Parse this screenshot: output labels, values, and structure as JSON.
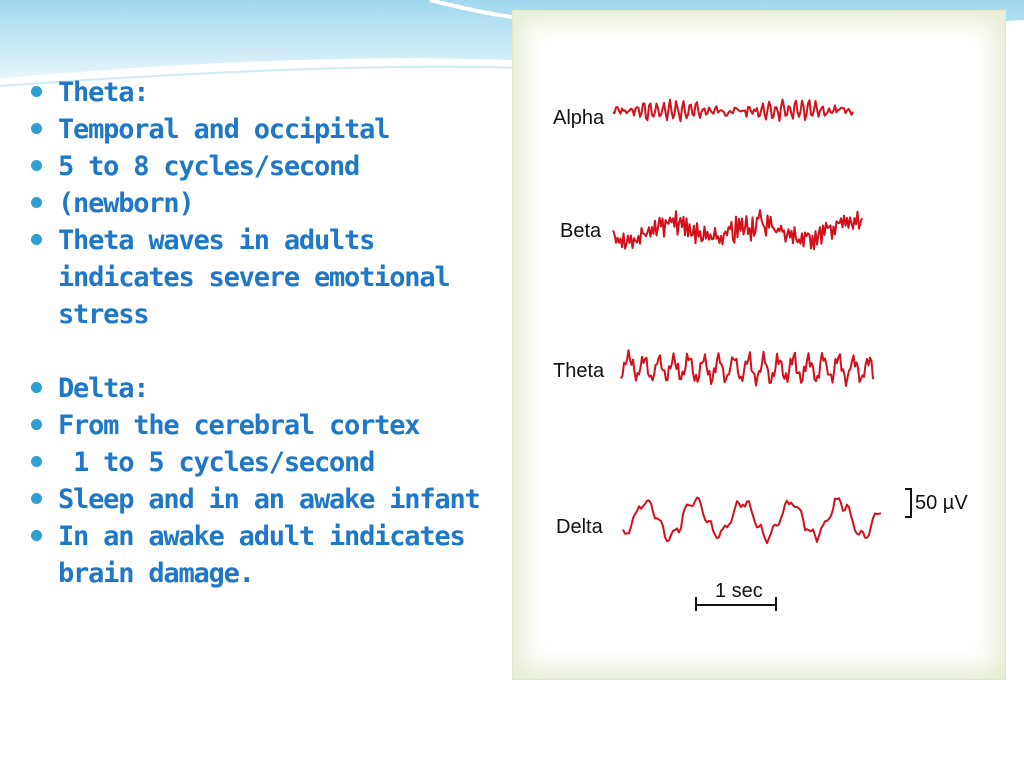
{
  "bullets": [
    {
      "text": "Theta:"
    },
    {
      "text": "Temporal and occipital"
    },
    {
      "text": "5 to 8 cycles/second"
    },
    {
      "text": "(newborn)"
    },
    {
      "text": "Theta waves in adults indicates severe emotional stress"
    },
    {
      "gap": true
    },
    {
      "text": "Delta:"
    },
    {
      "text": "From the cerebral cortex"
    },
    {
      "text": " 1 to 5 cycles/second"
    },
    {
      "text": "Sleep and in an awake infant"
    },
    {
      "text": "In an awake adult indicates brain damage."
    }
  ],
  "figure": {
    "traces": [
      {
        "label": "Alpha",
        "kind": "alpha"
      },
      {
        "label": "Beta",
        "kind": "beta"
      },
      {
        "label": "Theta",
        "kind": "theta"
      },
      {
        "label": "Delta",
        "kind": "delta"
      }
    ],
    "amplitude_scale": "50 µV",
    "time_scale": "1 sec",
    "trace_color": "#d4101a"
  },
  "colors": {
    "text": "#1f77c8",
    "bullet": "#2d9fd3",
    "header_wave": "#bfe4f0"
  }
}
